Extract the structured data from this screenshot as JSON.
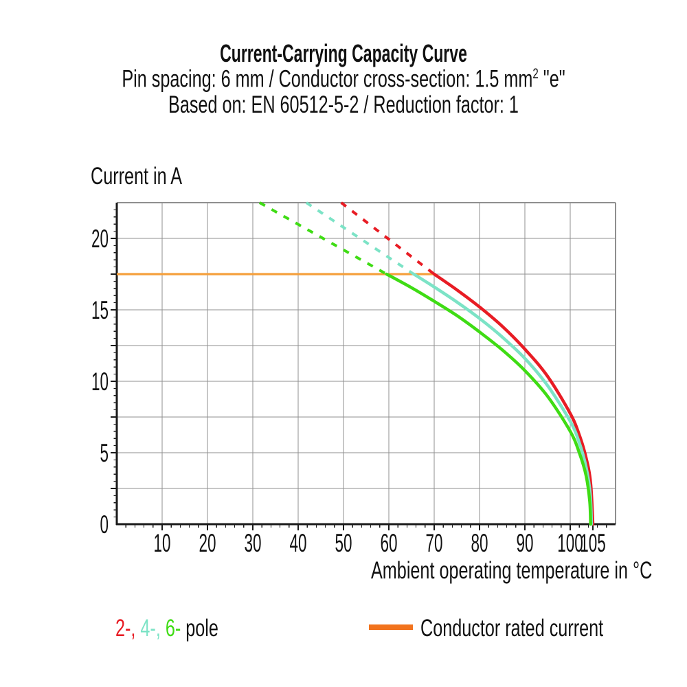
{
  "header": {
    "title": "Current-Carrying Capacity Curve",
    "subtitle_spec": {
      "text_before_sup": "Pin spacing: 6 mm / Conductor cross-section: 1.5 mm",
      "sup": "2",
      "text_after_sup": " \"e\""
    },
    "subtitle_standard": "Based on: EN 60512-5-2 / Reduction factor: 1"
  },
  "chart_data": {
    "type": "line",
    "title": "Current-Carrying Capacity Curve",
    "xlabel": "Ambient operating temperature in °C",
    "ylabel": "Current in A",
    "xlim": [
      0,
      110
    ],
    "ylim": [
      0,
      22.5
    ],
    "x_ticks": [
      10,
      20,
      30,
      40,
      50,
      60,
      70,
      80,
      90,
      100,
      105
    ],
    "y_ticks": [
      0,
      5,
      10,
      15,
      20
    ],
    "x_minor_step": 2,
    "y_minor_step": 0.5,
    "grid_x_step": 10,
    "grid_y_step": 2.5,
    "grid_color": "#8f8f8f",
    "axis_color": "#1a1a1a",
    "rated_current": {
      "name": "Conductor rated current",
      "value": 17.5,
      "x_start": 0,
      "x_end": 70,
      "color": "#f5a03c"
    },
    "series": [
      {
        "name": "2-pole",
        "color": "#e81c24",
        "dashed": [
          [
            49.5,
            22.5
          ],
          [
            70,
            17.5
          ]
        ],
        "points": [
          [
            70,
            17.5
          ],
          [
            75,
            16.4
          ],
          [
            80,
            15.2
          ],
          [
            85,
            13.85
          ],
          [
            90,
            12.25
          ],
          [
            95,
            10.35
          ],
          [
            100,
            7.75
          ],
          [
            102,
            6.25
          ],
          [
            103.5,
            4.65
          ],
          [
            104.5,
            2.9
          ],
          [
            105,
            0
          ]
        ]
      },
      {
        "name": "4-pole",
        "color": "#7ce3c6",
        "dashed": [
          [
            41.8,
            22.5
          ],
          [
            65.5,
            17.5
          ]
        ],
        "points": [
          [
            65.5,
            17.5
          ],
          [
            70,
            16.6
          ],
          [
            75,
            15.55
          ],
          [
            80,
            14.4
          ],
          [
            85,
            13.1
          ],
          [
            90,
            11.6
          ],
          [
            95,
            9.7
          ],
          [
            100,
            7.2
          ],
          [
            102,
            5.7
          ],
          [
            103.5,
            4.0
          ],
          [
            104.4,
            2.2
          ],
          [
            104.7,
            0
          ]
        ]
      },
      {
        "name": "6-pole",
        "color": "#3fdc14",
        "dashed": [
          [
            31.5,
            22.5
          ],
          [
            59.5,
            17.5
          ]
        ],
        "points": [
          [
            59.5,
            17.5
          ],
          [
            65,
            16.55
          ],
          [
            70,
            15.6
          ],
          [
            75,
            14.6
          ],
          [
            80,
            13.45
          ],
          [
            85,
            12.2
          ],
          [
            90,
            10.75
          ],
          [
            95,
            8.95
          ],
          [
            100,
            6.5
          ],
          [
            102,
            5.0
          ],
          [
            103.5,
            3.4
          ],
          [
            104.3,
            1.6
          ],
          [
            104.5,
            0
          ]
        ]
      }
    ]
  },
  "legend": {
    "poles": [
      {
        "label": "2-,",
        "color": "#e81c24"
      },
      {
        "label": " 4-,",
        "color": "#7ce3c6"
      },
      {
        "label": " 6-",
        "color": "#3fdc14"
      }
    ],
    "poles_suffix": " pole",
    "rated": {
      "label": "Conductor rated current",
      "swatch_color": "#f2731d"
    }
  }
}
